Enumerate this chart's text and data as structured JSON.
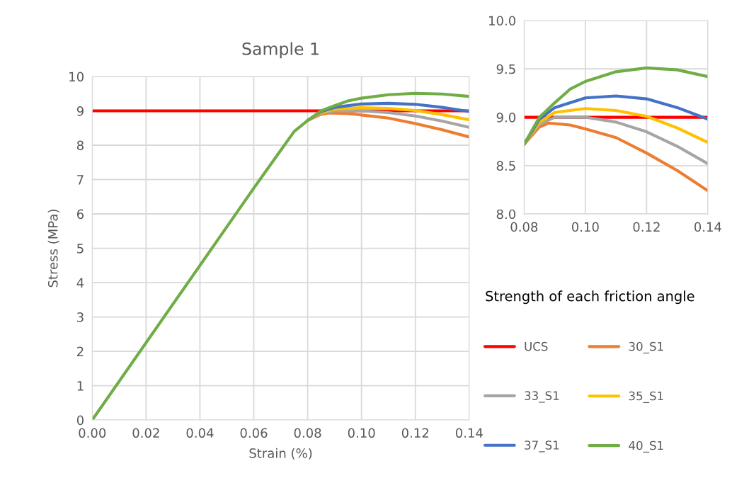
{
  "chart_data": [
    {
      "type": "line",
      "title": "Sample 1",
      "xlabel": "Strain (%)",
      "ylabel": "Stress (MPa)",
      "xlim": [
        0,
        0.14
      ],
      "ylim": [
        0,
        10
      ],
      "xticks": [
        {
          "value": 0,
          "label": "0.00"
        },
        {
          "value": 0.02,
          "label": "0.02"
        },
        {
          "value": 0.04,
          "label": "0.04"
        },
        {
          "value": 0.06,
          "label": "0.06"
        },
        {
          "value": 0.08,
          "label": "0.08"
        },
        {
          "value": 0.1,
          "label": "0.10"
        },
        {
          "value": 0.12,
          "label": "0.12"
        },
        {
          "value": 0.14,
          "label": "0.14"
        }
      ],
      "yticks": [
        0,
        1,
        2,
        3,
        4,
        5,
        6,
        7,
        8,
        9,
        10
      ],
      "grid": true,
      "legend": "right",
      "legend_title": "Strength of each friction angle",
      "marker": "none",
      "line_style": "solid",
      "series": [
        {
          "name": "UCS",
          "color": "#ff0000",
          "x": [
            0,
            0.14
          ],
          "values": [
            9,
            9
          ]
        },
        {
          "name": "30_S1",
          "color": "#ed7d31",
          "x": [
            0.08,
            0.085,
            0.088,
            0.095,
            0.1,
            0.11,
            0.12,
            0.13,
            0.14
          ],
          "values": [
            8.72,
            8.9,
            8.94,
            8.92,
            8.88,
            8.79,
            8.63,
            8.45,
            8.24
          ]
        },
        {
          "name": "33_S1",
          "color": "#a5a5a5",
          "x": [
            0.08,
            0.085,
            0.09,
            0.1,
            0.11,
            0.12,
            0.13,
            0.14
          ],
          "values": [
            8.72,
            8.93,
            9.0,
            9.0,
            8.95,
            8.85,
            8.7,
            8.52
          ]
        },
        {
          "name": "35_S1",
          "color": "#ffc000",
          "x": [
            0.08,
            0.085,
            0.09,
            0.1,
            0.11,
            0.12,
            0.13,
            0.14
          ],
          "values": [
            8.72,
            8.95,
            9.05,
            9.09,
            9.07,
            9.01,
            8.89,
            8.74
          ]
        },
        {
          "name": "37_S1",
          "color": "#4472c4",
          "x": [
            0.08,
            0.085,
            0.09,
            0.1,
            0.11,
            0.12,
            0.13,
            0.14
          ],
          "values": [
            8.72,
            8.98,
            9.1,
            9.2,
            9.22,
            9.19,
            9.1,
            8.98
          ]
        },
        {
          "name": "40_S1",
          "color": "#70ad47",
          "x": [
            0,
            0.06,
            0.07,
            0.075,
            0.08,
            0.085,
            0.09,
            0.095,
            0.1,
            0.11,
            0.12,
            0.13,
            0.14
          ],
          "values": [
            0,
            6.75,
            7.85,
            8.4,
            8.72,
            9.0,
            9.15,
            9.29,
            9.37,
            9.47,
            9.51,
            9.49,
            9.42
          ]
        }
      ]
    },
    {
      "type": "line",
      "xlim": [
        0.08,
        0.14
      ],
      "ylim": [
        8,
        10
      ],
      "xticks": [
        {
          "value": 0.08,
          "label": "0.08"
        },
        {
          "value": 0.1,
          "label": "0.10"
        },
        {
          "value": 0.12,
          "label": "0.12"
        },
        {
          "value": 0.14,
          "label": "0.14"
        }
      ],
      "yticks": [
        {
          "value": 8,
          "label": "8.0"
        },
        {
          "value": 8.5,
          "label": "8.5"
        },
        {
          "value": 9,
          "label": "9.0"
        },
        {
          "value": 9.5,
          "label": "9.5"
        },
        {
          "value": 10,
          "label": "10.0"
        }
      ],
      "grid": true,
      "marker": "none",
      "line_style": "solid",
      "series": [
        {
          "color": "#ff0000",
          "x": [
            0.08,
            0.14
          ],
          "values": [
            9,
            9
          ]
        },
        {
          "color": "#ed7d31",
          "x": [
            0.08,
            0.085,
            0.088,
            0.095,
            0.1,
            0.11,
            0.12,
            0.13,
            0.14
          ],
          "values": [
            8.72,
            8.9,
            8.94,
            8.92,
            8.88,
            8.79,
            8.63,
            8.45,
            8.24
          ]
        },
        {
          "color": "#a5a5a5",
          "x": [
            0.08,
            0.085,
            0.09,
            0.1,
            0.11,
            0.12,
            0.13,
            0.14
          ],
          "values": [
            8.72,
            8.93,
            9.0,
            9.0,
            8.95,
            8.85,
            8.7,
            8.52
          ]
        },
        {
          "color": "#ffc000",
          "x": [
            0.08,
            0.085,
            0.09,
            0.1,
            0.11,
            0.12,
            0.13,
            0.14
          ],
          "values": [
            8.72,
            8.95,
            9.05,
            9.09,
            9.07,
            9.01,
            8.89,
            8.74
          ]
        },
        {
          "color": "#4472c4",
          "x": [
            0.08,
            0.085,
            0.09,
            0.1,
            0.11,
            0.12,
            0.13,
            0.14
          ],
          "values": [
            8.72,
            8.98,
            9.1,
            9.2,
            9.22,
            9.19,
            9.1,
            8.98
          ]
        },
        {
          "color": "#70ad47",
          "x": [
            0.08,
            0.085,
            0.09,
            0.095,
            0.1,
            0.11,
            0.12,
            0.13,
            0.14
          ],
          "values": [
            8.72,
            9.0,
            9.15,
            9.29,
            9.37,
            9.47,
            9.51,
            9.49,
            9.42
          ]
        }
      ]
    }
  ]
}
